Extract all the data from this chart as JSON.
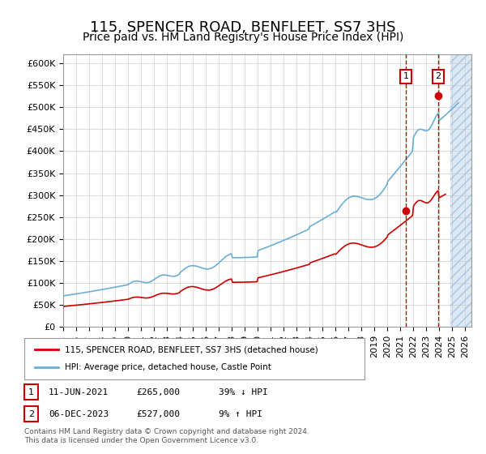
{
  "title": "115, SPENCER ROAD, BENFLEET, SS7 3HS",
  "subtitle": "Price paid vs. HM Land Registry's House Price Index (HPI)",
  "ylabel": "",
  "ylim": [
    0,
    620000
  ],
  "yticks": [
    0,
    50000,
    100000,
    150000,
    200000,
    250000,
    300000,
    350000,
    400000,
    450000,
    500000,
    550000,
    600000
  ],
  "xlim_start": 1995.0,
  "xlim_end": 2026.5,
  "hpi_color": "#6baed6",
  "price_color": "#cc0000",
  "transaction1_date": 2021.44,
  "transaction1_price": 265000,
  "transaction1_label": "1",
  "transaction2_date": 2023.92,
  "transaction2_price": 527000,
  "transaction2_label": "2",
  "legend_price_label": "115, SPENCER ROAD, BENFLEET, SS7 3HS (detached house)",
  "legend_hpi_label": "HPI: Average price, detached house, Castle Point",
  "table_row1": [
    "1",
    "11-JUN-2021",
    "£265,000",
    "39% ↓ HPI"
  ],
  "table_row2": [
    "2",
    "06-DEC-2023",
    "£527,000",
    "9% ↑ HPI"
  ],
  "footer": "Contains HM Land Registry data © Crown copyright and database right 2024.\nThis data is licensed under the Open Government Licence v3.0.",
  "background_color": "#ffffff",
  "grid_color": "#cccccc",
  "future_shade_color": "#dce9f5",
  "title_fontsize": 13,
  "subtitle_fontsize": 10,
  "tick_fontsize": 8
}
